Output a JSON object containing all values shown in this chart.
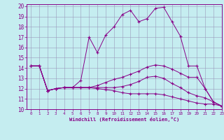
{
  "xlabel": "Windchill (Refroidissement éolien,°C)",
  "xlim": [
    -0.5,
    23
  ],
  "ylim": [
    10,
    20.2
  ],
  "xticks": [
    0,
    1,
    2,
    3,
    4,
    5,
    6,
    7,
    8,
    9,
    10,
    11,
    12,
    13,
    14,
    15,
    16,
    17,
    18,
    19,
    20,
    21,
    22,
    23
  ],
  "yticks": [
    10,
    11,
    12,
    13,
    14,
    15,
    16,
    17,
    18,
    19,
    20
  ],
  "bg_color": "#c5edf0",
  "line_color": "#880088",
  "grid_color": "#9999bb",
  "lines": [
    [
      14.2,
      14.2,
      11.8,
      12.0,
      12.1,
      12.1,
      12.8,
      17.0,
      15.5,
      17.2,
      18.0,
      19.2,
      19.6,
      18.5,
      18.8,
      19.8,
      19.9,
      18.5,
      17.1,
      14.2,
      14.2,
      12.0,
      10.7,
      10.3
    ],
    [
      14.2,
      14.2,
      11.8,
      12.0,
      12.1,
      12.1,
      12.1,
      12.1,
      12.3,
      12.6,
      12.9,
      13.1,
      13.4,
      13.7,
      14.1,
      14.3,
      14.2,
      13.9,
      13.5,
      13.1,
      13.1,
      12.0,
      10.7,
      10.3
    ],
    [
      14.2,
      14.2,
      11.8,
      12.0,
      12.1,
      12.1,
      12.1,
      12.1,
      12.1,
      12.1,
      12.1,
      12.2,
      12.4,
      12.7,
      13.1,
      13.2,
      13.0,
      12.5,
      12.1,
      11.6,
      11.3,
      11.1,
      10.7,
      10.3
    ],
    [
      14.2,
      14.2,
      11.8,
      12.0,
      12.1,
      12.1,
      12.1,
      12.1,
      12.0,
      11.9,
      11.8,
      11.6,
      11.5,
      11.5,
      11.5,
      11.5,
      11.4,
      11.2,
      11.0,
      10.8,
      10.6,
      10.5,
      10.5,
      10.3
    ]
  ]
}
